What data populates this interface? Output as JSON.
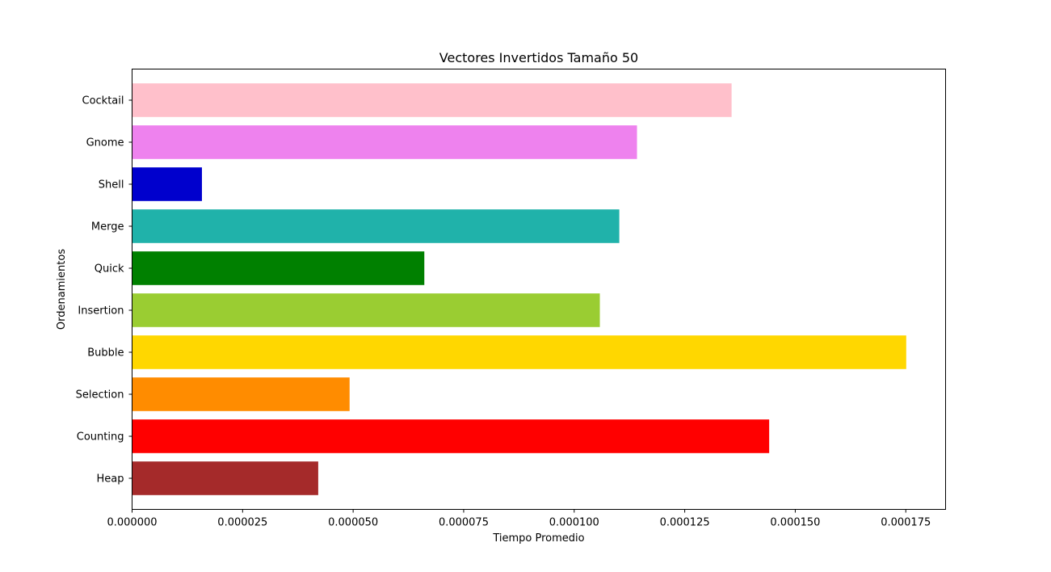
{
  "chart_data": {
    "type": "bar",
    "orientation": "horizontal",
    "title": "Vectores Invertidos Tamaño 50",
    "xlabel": "Tiempo Promedio",
    "ylabel": "Ordenamientos",
    "categories": [
      "Heap",
      "Counting",
      "Selection",
      "Bubble",
      "Insertion",
      "Quick",
      "Merge",
      "Shell",
      "Gnome",
      "Cocktail"
    ],
    "values": [
      4.21e-05,
      0.0001441,
      4.92e-05,
      0.0001751,
      0.0001058,
      6.61e-05,
      0.0001102,
      1.58e-05,
      0.0001142,
      0.0001356
    ],
    "colors": [
      "#a52a2a",
      "#ff0000",
      "#ff8c00",
      "#ffd700",
      "#9acd32",
      "#008000",
      "#20b2aa",
      "#0000cd",
      "#ee82ee",
      "#ffc0cb"
    ],
    "xlim": [
      0,
      0.000184
    ],
    "xticks": [
      0,
      2.5e-05,
      5e-05,
      7.5e-05,
      0.0001,
      0.000125,
      0.00015,
      0.000175
    ],
    "xtick_labels": [
      "0.000000",
      "0.000025",
      "0.000050",
      "0.000075",
      "0.000100",
      "0.000125",
      "0.000150",
      "0.000175"
    ],
    "grid": false,
    "legend": "none"
  }
}
